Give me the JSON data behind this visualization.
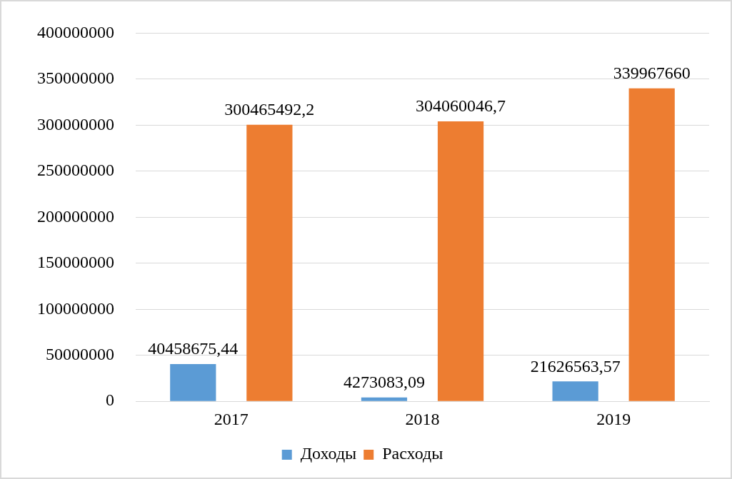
{
  "chart_data": {
    "type": "bar",
    "categories": [
      "2017",
      "2018",
      "2019"
    ],
    "series": [
      {
        "name": "Доходы",
        "color": "#5b9bd5",
        "values": [
          40458675.44,
          4273083.09,
          21626563.57
        ],
        "value_labels": [
          "40458675,44",
          "4273083,09",
          "21626563,57"
        ]
      },
      {
        "name": "Расходы",
        "color": "#ed7d31",
        "values": [
          300465492.2,
          304060046.7,
          339967660
        ],
        "value_labels": [
          "300465492,2",
          "304060046,7",
          "339967660"
        ]
      }
    ],
    "ylim": [
      0,
      400000000
    ],
    "yticks": [
      0,
      50000000,
      100000000,
      150000000,
      200000000,
      250000000,
      300000000,
      350000000,
      400000000
    ],
    "grid": "y",
    "legend": "bottom"
  }
}
